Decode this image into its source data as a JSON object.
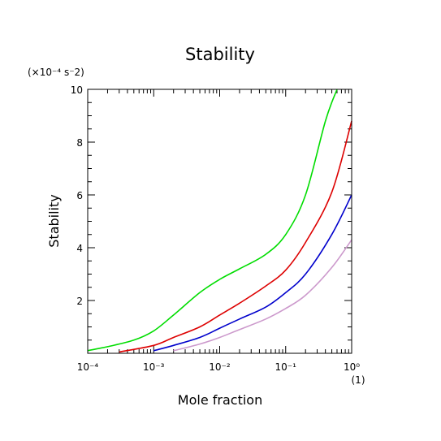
{
  "chart_data": {
    "type": "line",
    "title": "Stability",
    "xlabel": "Mole fraction",
    "ylabel": "Stability",
    "x_unit": "(1)",
    "y_unit": "(×10⁻⁴ s⁻2)",
    "x_scale": "log",
    "xlim": [
      0.0001,
      1
    ],
    "ylim": [
      0,
      10
    ],
    "x_ticks": [
      {
        "value": 0.0001,
        "label": "10⁻⁴"
      },
      {
        "value": 0.001,
        "label": "10⁻³"
      },
      {
        "value": 0.01,
        "label": "10⁻²"
      },
      {
        "value": 0.1,
        "label": "10⁻¹"
      },
      {
        "value": 1,
        "label": "10⁰"
      }
    ],
    "y_ticks": [
      {
        "value": 2,
        "label": "2"
      },
      {
        "value": 4,
        "label": "4"
      },
      {
        "value": 6,
        "label": "6"
      },
      {
        "value": 8,
        "label": "8"
      },
      {
        "value": 10,
        "label": "10"
      }
    ],
    "grid": false,
    "legend": "none",
    "series": [
      {
        "color": "#00dd00",
        "x": [
          0.0001,
          0.0002,
          0.0005,
          0.001,
          0.002,
          0.005,
          0.01,
          0.02,
          0.05,
          0.1,
          0.2,
          0.4,
          0.6
        ],
        "y": [
          0.1,
          0.25,
          0.5,
          0.85,
          1.45,
          2.3,
          2.8,
          3.2,
          3.75,
          4.5,
          6.0,
          8.8,
          10.0
        ]
      },
      {
        "color": "#dd0000",
        "x": [
          0.0003,
          0.001,
          0.002,
          0.005,
          0.01,
          0.02,
          0.05,
          0.1,
          0.2,
          0.5,
          1
        ],
        "y": [
          0.05,
          0.3,
          0.6,
          1.0,
          1.45,
          1.9,
          2.55,
          3.15,
          4.2,
          6.1,
          8.8
        ]
      },
      {
        "color": "#0000cc",
        "x": [
          0.001,
          0.002,
          0.005,
          0.01,
          0.02,
          0.05,
          0.1,
          0.2,
          0.5,
          1
        ],
        "y": [
          0.1,
          0.3,
          0.6,
          0.95,
          1.3,
          1.75,
          2.3,
          3.0,
          4.5,
          6.0
        ]
      },
      {
        "color": "#cc99cc",
        "x": [
          0.002,
          0.005,
          0.01,
          0.02,
          0.05,
          0.1,
          0.2,
          0.5,
          1
        ],
        "y": [
          0.1,
          0.35,
          0.6,
          0.9,
          1.3,
          1.7,
          2.2,
          3.25,
          4.3
        ]
      }
    ]
  }
}
